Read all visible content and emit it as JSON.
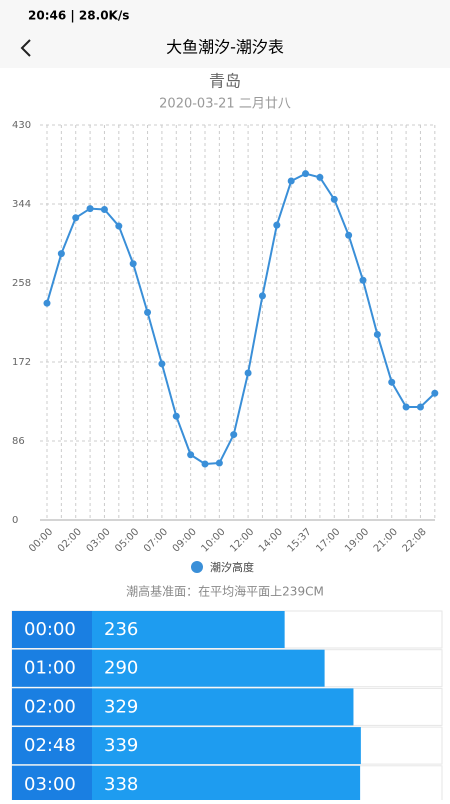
{
  "status_bar": {
    "time": "20:46 | 28.0K/s"
  },
  "header": {
    "title": "大鱼潮汐-潮汐表"
  },
  "chart_data": {
    "type": "line",
    "title": "青岛",
    "subtitle": "2020-03-21 二月廿八",
    "categories": [
      "00:00",
      null,
      "02:00",
      null,
      "03:00",
      null,
      "05:00",
      null,
      "07:00",
      null,
      "09:00",
      null,
      "10:00",
      null,
      "12:00",
      null,
      "14:00",
      null,
      "15:37",
      null,
      "17:00",
      null,
      "19:00",
      null,
      "21:00",
      null,
      "22:08",
      null
    ],
    "series": [
      {
        "name": "潮汐高度",
        "color": "#3a8fd8",
        "values": [
          236,
          290,
          329,
          339,
          338,
          320,
          279,
          226,
          170,
          113,
          71,
          61,
          62,
          93,
          160,
          244,
          321,
          369,
          377,
          373,
          349,
          310,
          261,
          202,
          150,
          123,
          123,
          138
        ]
      }
    ],
    "ylim": [
      0,
      430
    ],
    "yticks": [
      0,
      86,
      172,
      258,
      344,
      430
    ],
    "grid": true,
    "legend": "bottom"
  },
  "note": "潮高基准面：在平均海平面上239CM",
  "table": {
    "rows": [
      [
        "00:00",
        236
      ],
      [
        "01:00",
        290
      ],
      [
        "02:00",
        329
      ],
      [
        "02:48",
        339
      ],
      [
        "03:00",
        338
      ]
    ]
  }
}
